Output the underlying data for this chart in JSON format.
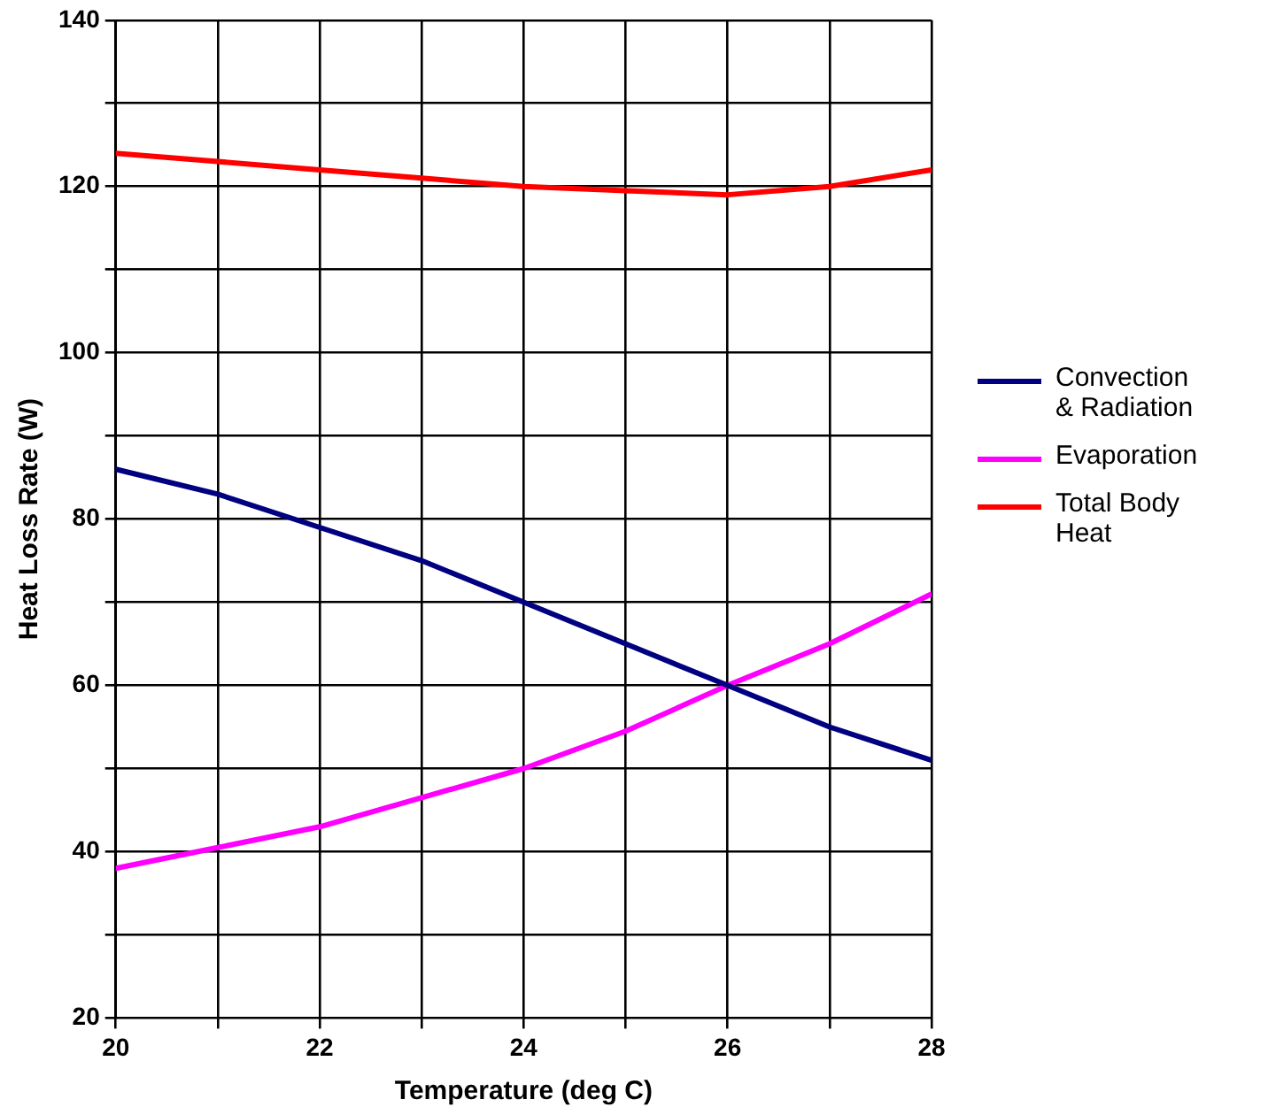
{
  "chart_data": {
    "type": "line",
    "xlabel": "Temperature (deg C)",
    "ylabel": "Heat Loss Rate (W)",
    "x": [
      20,
      21,
      22,
      23,
      24,
      25,
      26,
      27,
      28
    ],
    "series": [
      {
        "name": "Convection & Radiation",
        "color": "#000080",
        "values": [
          86,
          83,
          79,
          75,
          70,
          65,
          60,
          55,
          51
        ]
      },
      {
        "name": "Evaporation",
        "color": "#ff00ff",
        "values": [
          38,
          40.5,
          43,
          46.5,
          50,
          54.5,
          60,
          65,
          71
        ]
      },
      {
        "name": "Total Body Heat",
        "color": "#ff0000",
        "values": [
          124,
          123,
          122,
          121,
          120,
          119.5,
          119,
          120,
          122
        ]
      }
    ],
    "xlim": [
      20,
      28
    ],
    "xticks": [
      20,
      {
        "value": 21,
        "label": null
      },
      22,
      {
        "value": 23,
        "label": null
      },
      24,
      {
        "value": 25,
        "label": null
      },
      26,
      {
        "value": 27,
        "label": null
      },
      28
    ],
    "ylim": [
      20,
      140
    ],
    "yticks": [
      20,
      {
        "value": 30,
        "label": null
      },
      40,
      {
        "value": 50,
        "label": null
      },
      60,
      {
        "value": 70,
        "label": null
      },
      80,
      {
        "value": 90,
        "label": null
      },
      100,
      {
        "value": 110,
        "label": null
      },
      120,
      {
        "value": 130,
        "label": null
      },
      140
    ],
    "grid": true,
    "legend": "right",
    "marker": "none",
    "line_style": "solid"
  }
}
